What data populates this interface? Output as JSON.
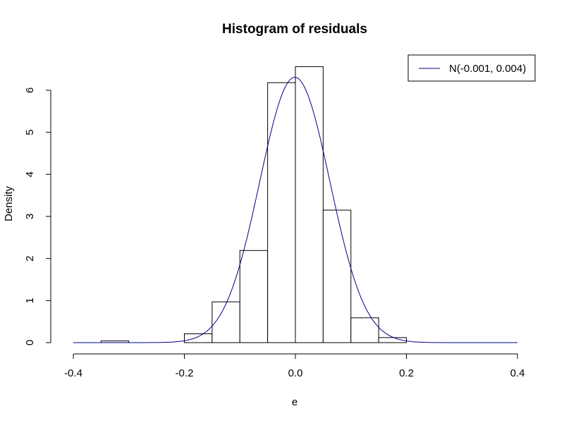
{
  "chart_data": {
    "type": "bar",
    "title": "Histogram of residuals",
    "xlabel": "e",
    "ylabel": "Density",
    "xlim": [
      -0.4,
      0.4
    ],
    "ylim": [
      0,
      6.6
    ],
    "x_ticks": [
      -0.4,
      -0.2,
      0.0,
      0.2,
      0.4
    ],
    "x_tick_labels": [
      "-0.4",
      "-0.2",
      "0.0",
      "0.2",
      "0.4"
    ],
    "y_ticks": [
      0,
      1,
      2,
      3,
      4,
      5,
      6
    ],
    "y_tick_labels": [
      "0",
      "1",
      "2",
      "3",
      "4",
      "5",
      "6"
    ],
    "bins": [
      {
        "x0": -0.35,
        "x1": -0.3,
        "density": 0.04
      },
      {
        "x0": -0.3,
        "x1": -0.25,
        "density": 0.0
      },
      {
        "x0": -0.25,
        "x1": -0.2,
        "density": 0.0
      },
      {
        "x0": -0.2,
        "x1": -0.15,
        "density": 0.21
      },
      {
        "x0": -0.15,
        "x1": -0.1,
        "density": 0.97
      },
      {
        "x0": -0.1,
        "x1": -0.05,
        "density": 2.19
      },
      {
        "x0": -0.05,
        "x1": 0.0,
        "density": 6.18
      },
      {
        "x0": 0.0,
        "x1": 0.05,
        "density": 6.56
      },
      {
        "x0": 0.05,
        "x1": 0.1,
        "density": 3.15
      },
      {
        "x0": 0.1,
        "x1": 0.15,
        "density": 0.59
      },
      {
        "x0": 0.15,
        "x1": 0.2,
        "density": 0.12
      }
    ],
    "curve": {
      "name": "N(-0.001, 0.004)",
      "type": "line",
      "distribution": "normal",
      "mean": -0.001,
      "variance": 0.004,
      "color": "#00008b"
    },
    "bar_fill": "#ffffff",
    "bar_stroke": "#000000",
    "grid": false,
    "legend": {
      "position": "top-right",
      "entries": [
        "N(-0.001, 0.004)"
      ]
    }
  }
}
